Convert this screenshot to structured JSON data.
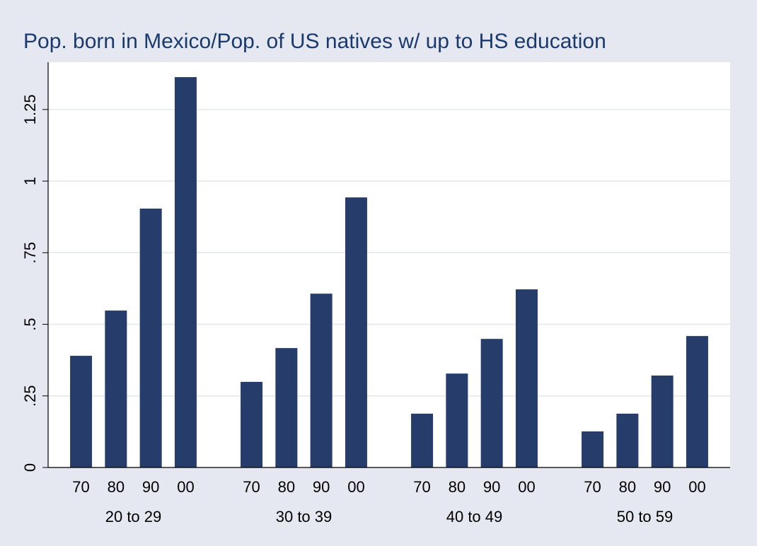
{
  "chart_data": {
    "type": "bar",
    "title": "Pop. born in Mexico/Pop. of US natives w/ up to HS education",
    "categories": [
      "70",
      "80",
      "90",
      "00"
    ],
    "groups": [
      {
        "name": "20 to 29",
        "values": [
          0.39,
          0.548,
          0.904,
          1.363
        ]
      },
      {
        "name": "30 to 39",
        "values": [
          0.299,
          0.417,
          0.607,
          0.943
        ]
      },
      {
        "name": "40 to 49",
        "values": [
          0.188,
          0.328,
          0.449,
          0.622
        ]
      },
      {
        "name": "50 to 59",
        "values": [
          0.126,
          0.188,
          0.321,
          0.459
        ]
      }
    ],
    "color": "#263d6c",
    "ylim": [
      0,
      1.415
    ],
    "yticks": [
      0,
      {
        "value": 0.25,
        "label": ".25"
      },
      {
        "value": 0.5,
        "label": ".5"
      },
      {
        "value": 0.75,
        "label": ".75"
      },
      1,
      1.25
    ],
    "grid": true
  }
}
